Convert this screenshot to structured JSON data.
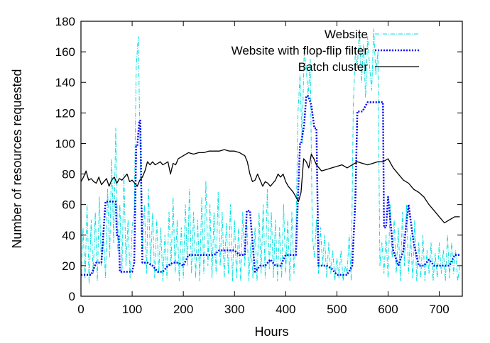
{
  "chart_data": {
    "type": "line",
    "title": "",
    "xlabel": "Hours",
    "ylabel": "Number of resources requested",
    "xlim": [
      0,
      745
    ],
    "ylim": [
      0,
      180
    ],
    "xticks": [
      0,
      100,
      200,
      300,
      400,
      500,
      600,
      700
    ],
    "yticks": [
      0,
      20,
      40,
      60,
      80,
      100,
      120,
      140,
      160,
      180
    ],
    "legend_position": "top-right",
    "grid": false,
    "series": [
      {
        "name": "Website",
        "color": "#00e0e0",
        "style": "dash-dot",
        "x": [
          0,
          4,
          8,
          12,
          16,
          20,
          24,
          28,
          32,
          36,
          40,
          44,
          48,
          52,
          56,
          60,
          64,
          68,
          72,
          76,
          80,
          84,
          88,
          92,
          96,
          100,
          104,
          108,
          112,
          116,
          120,
          124,
          128,
          132,
          136,
          140,
          144,
          148,
          152,
          156,
          160,
          164,
          168,
          172,
          176,
          180,
          184,
          188,
          192,
          196,
          200,
          204,
          208,
          212,
          216,
          220,
          224,
          228,
          232,
          236,
          240,
          244,
          248,
          252,
          256,
          260,
          264,
          268,
          272,
          276,
          280,
          284,
          288,
          292,
          296,
          300,
          304,
          308,
          312,
          316,
          320,
          324,
          328,
          332,
          336,
          340,
          344,
          348,
          352,
          356,
          360,
          364,
          368,
          372,
          376,
          380,
          384,
          388,
          392,
          396,
          400,
          404,
          408,
          412,
          416,
          420,
          424,
          428,
          432,
          436,
          440,
          444,
          448,
          452,
          456,
          460,
          464,
          468,
          472,
          476,
          480,
          484,
          488,
          492,
          496,
          500,
          504,
          508,
          512,
          516,
          520,
          524,
          528,
          532,
          536,
          540,
          544,
          548,
          552,
          556,
          560,
          564,
          568,
          572,
          576,
          580,
          584,
          588,
          592,
          596,
          600,
          604,
          608,
          612,
          616,
          620,
          624,
          628,
          632,
          636,
          640,
          644,
          648,
          652,
          656,
          660,
          664,
          668,
          672,
          676,
          680,
          684,
          688,
          692,
          696,
          700,
          704,
          708,
          712,
          716,
          720,
          724,
          728,
          732,
          736,
          740
        ],
        "y": [
          10,
          45,
          12,
          60,
          8,
          50,
          15,
          55,
          10,
          65,
          20,
          40,
          12,
          70,
          25,
          90,
          35,
          110,
          30,
          60,
          15,
          80,
          20,
          50,
          12,
          45,
          55,
          150,
          170,
          90,
          30,
          60,
          15,
          70,
          20,
          55,
          12,
          50,
          15,
          45,
          10,
          40,
          12,
          55,
          20,
          65,
          15,
          50,
          10,
          45,
          12,
          60,
          20,
          70,
          15,
          55,
          12,
          50,
          10,
          65,
          15,
          75,
          20,
          60,
          12,
          55,
          15,
          68,
          20,
          55,
          12,
          48,
          15,
          60,
          10,
          50,
          12,
          45,
          10,
          55,
          20,
          50,
          10,
          35,
          12,
          45,
          10,
          55,
          15,
          60,
          12,
          70,
          18,
          55,
          12,
          50,
          10,
          45,
          12,
          60,
          15,
          50,
          10,
          55,
          15,
          40,
          120,
          145,
          100,
          160,
          150,
          130,
          155,
          40,
          25,
          50,
          15,
          45,
          20,
          40,
          12,
          35,
          15,
          30,
          10,
          25,
          12,
          30,
          10,
          20,
          15,
          40,
          10,
          125,
          160,
          150,
          175,
          140,
          165,
          130,
          170,
          150,
          135,
          175,
          145,
          160,
          20,
          35,
          15,
          40,
          12,
          60,
          25,
          50,
          15,
          45,
          10,
          55,
          20,
          60,
          15,
          40,
          12,
          50,
          10,
          35,
          12,
          40,
          10,
          30,
          15,
          35,
          10,
          28,
          12,
          35,
          15,
          30,
          10,
          40,
          12,
          35,
          15,
          30,
          10,
          20
        ]
      },
      {
        "name": "Website with flop-flip filter",
        "color": "#0000ff",
        "style": "dotted",
        "x": [
          0,
          20,
          30,
          40,
          48,
          50,
          60,
          68,
          70,
          74,
          76,
          80,
          90,
          96,
          100,
          104,
          108,
          110,
          114,
          116,
          120,
          130,
          140,
          150,
          160,
          170,
          180,
          190,
          200,
          210,
          220,
          230,
          240,
          250,
          260,
          270,
          280,
          290,
          300,
          310,
          320,
          324,
          330,
          340,
          350,
          360,
          370,
          380,
          390,
          400,
          410,
          420,
          424,
          428,
          430,
          436,
          440,
          444,
          450,
          456,
          460,
          464,
          470,
          480,
          490,
          500,
          510,
          520,
          530,
          536,
          540,
          550,
          560,
          570,
          580,
          590,
          592,
          596,
          600,
          610,
          620,
          630,
          640,
          650,
          660,
          670,
          680,
          690,
          700,
          710,
          720,
          730,
          740
        ],
        "y": [
          14,
          14,
          22,
          22,
          62,
          62,
          62,
          62,
          40,
          40,
          16,
          16,
          16,
          16,
          16,
          22,
          98,
          98,
          115,
          115,
          22,
          22,
          20,
          16,
          16,
          20,
          22,
          22,
          20,
          27,
          27,
          27,
          27,
          27,
          27,
          30,
          30,
          30,
          30,
          27,
          27,
          56,
          56,
          16,
          20,
          20,
          24,
          20,
          20,
          27,
          27,
          27,
          65,
          100,
          100,
          112,
          131,
          131,
          125,
          110,
          110,
          20,
          20,
          20,
          18,
          14,
          14,
          14,
          20,
          63,
          121,
          121,
          127,
          127,
          127,
          127,
          45,
          45,
          65,
          30,
          20,
          30,
          60,
          35,
          20,
          20,
          24,
          20,
          20,
          20,
          20,
          27,
          27
        ]
      },
      {
        "name": "Batch cluster",
        "color": "#000000",
        "style": "solid",
        "x": [
          0,
          5,
          10,
          15,
          20,
          25,
          30,
          35,
          40,
          45,
          50,
          55,
          60,
          65,
          70,
          75,
          80,
          85,
          90,
          95,
          100,
          105,
          110,
          115,
          120,
          125,
          130,
          135,
          140,
          145,
          150,
          155,
          160,
          165,
          170,
          175,
          180,
          185,
          190,
          200,
          210,
          220,
          230,
          240,
          250,
          260,
          270,
          280,
          290,
          300,
          310,
          320,
          325,
          330,
          335,
          340,
          345,
          350,
          355,
          360,
          365,
          370,
          375,
          380,
          385,
          390,
          395,
          400,
          405,
          410,
          415,
          420,
          425,
          430,
          435,
          440,
          445,
          450,
          455,
          460,
          465,
          470,
          480,
          490,
          500,
          510,
          520,
          530,
          540,
          550,
          560,
          570,
          580,
          590,
          600,
          610,
          620,
          630,
          640,
          650,
          660,
          670,
          680,
          690,
          700,
          710,
          720,
          730,
          740
        ],
        "y": [
          75,
          78,
          82,
          76,
          77,
          75,
          74,
          78,
          73,
          75,
          77,
          72,
          76,
          78,
          74,
          77,
          76,
          78,
          80,
          75,
          76,
          74,
          72,
          76,
          78,
          82,
          88,
          86,
          88,
          86,
          87,
          88,
          86,
          87,
          88,
          80,
          87,
          86,
          90,
          92,
          94,
          93,
          94,
          94,
          95,
          95,
          95,
          96,
          95,
          95,
          94,
          92,
          88,
          80,
          75,
          76,
          80,
          76,
          72,
          75,
          74,
          72,
          74,
          76,
          80,
          78,
          80,
          75,
          72,
          70,
          68,
          65,
          62,
          68,
          90,
          88,
          84,
          93,
          90,
          86,
          84,
          82,
          83,
          84,
          85,
          86,
          84,
          86,
          88,
          87,
          86,
          87,
          88,
          88,
          90,
          84,
          80,
          76,
          74,
          70,
          68,
          65,
          60,
          56,
          52,
          48,
          50,
          52,
          52
        ]
      }
    ]
  }
}
